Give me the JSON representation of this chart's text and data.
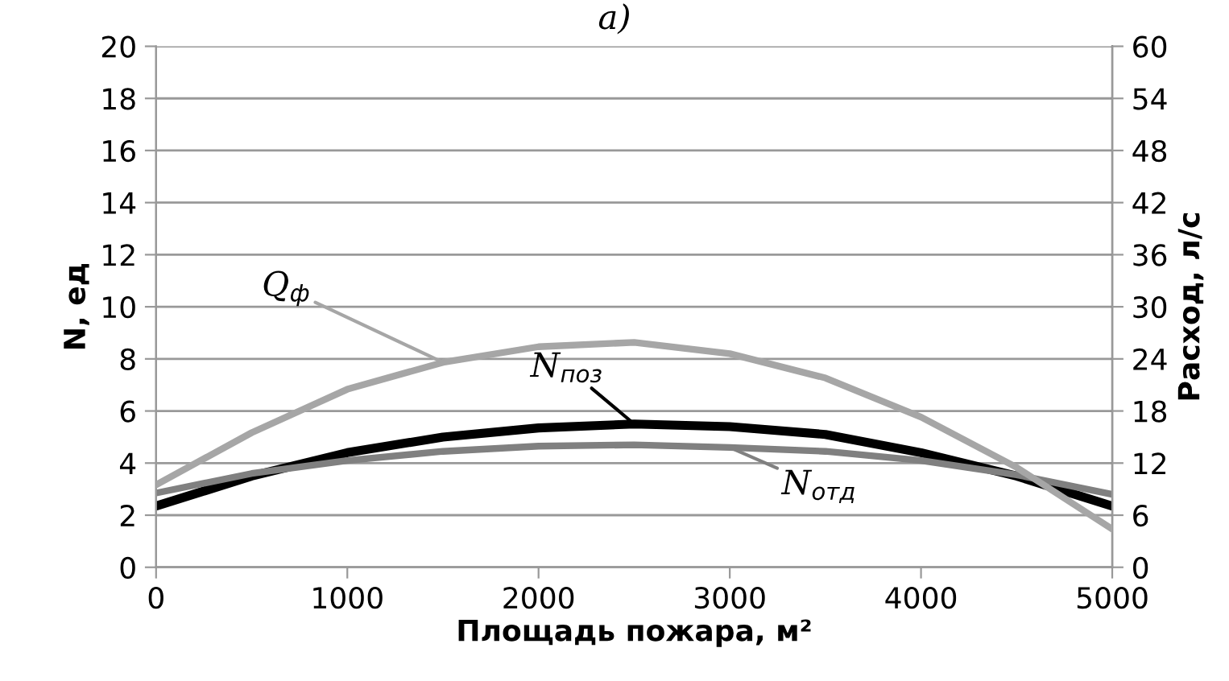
{
  "chart_data": {
    "type": "line",
    "title": "а)",
    "xlabel": "Площадь пожара, м²",
    "ylabel": "N, ед",
    "y2label": "Расход, л/с",
    "x": [
      0,
      500,
      1000,
      1500,
      2000,
      2500,
      3000,
      3500,
      4000,
      4500,
      5000
    ],
    "series": [
      {
        "name": "Q$_{ф}$",
        "color": "#a6a6a6",
        "axis": "y2",
        "values": [
          9.5,
          15.5,
          20.5,
          23.6,
          25.4,
          25.9,
          24.6,
          21.8,
          17.3,
          11.5,
          4.4
        ]
      },
      {
        "name": "N$_{поз}$",
        "color": "#000000",
        "values": [
          2.35,
          3.5,
          4.4,
          5.0,
          5.35,
          5.5,
          5.4,
          5.1,
          4.4,
          3.5,
          2.35
        ]
      },
      {
        "name": "N$_{отд}$",
        "color": "#808080",
        "values": [
          2.85,
          3.6,
          4.1,
          4.45,
          4.65,
          4.7,
          4.6,
          4.45,
          4.1,
          3.55,
          2.8
        ]
      }
    ],
    "xlim": [
      0,
      5000
    ],
    "xticks": [
      0,
      1000,
      2000,
      3000,
      4000,
      5000
    ],
    "ylim": [
      0,
      20
    ],
    "yticks": [
      0,
      2,
      4,
      6,
      8,
      10,
      12,
      14,
      16,
      18,
      20
    ],
    "y2lim": [
      0,
      60
    ],
    "y2ticks": [
      0,
      6,
      12,
      18,
      24,
      30,
      36,
      42,
      48,
      54,
      60
    ],
    "grid": "y",
    "marker": "none",
    "line_style": "solid"
  }
}
